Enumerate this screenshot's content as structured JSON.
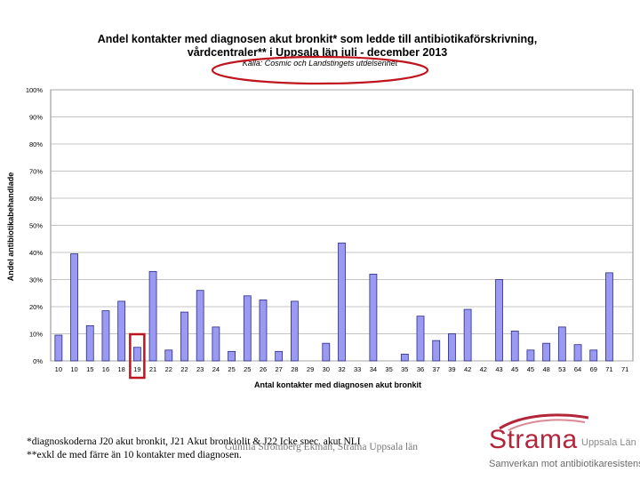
{
  "chart_data": {
    "type": "bar",
    "title_line1": "Andel kontakter med diagnosen akut bronkit* som ledde till antibiotikaförskrivning,",
    "title_line2": "vårdcentraler** i Uppsala län juli - december 2013",
    "source": "Källa: Cosmic och Landstingets utdelsenhet",
    "xlabel": "Antal kontakter med diagnosen akut bronkit",
    "ylabel": "Andel antibiotikabehandlade",
    "ylim": [
      0,
      100
    ],
    "yticks": [
      "0%",
      "10%",
      "20%",
      "30%",
      "40%",
      "50%",
      "60%",
      "70%",
      "80%",
      "90%",
      "100%"
    ],
    "grid": true,
    "categories": [
      "10",
      "10",
      "15",
      "16",
      "18",
      "19",
      "21",
      "22",
      "22",
      "23",
      "24",
      "25",
      "25",
      "26",
      "27",
      "28",
      "29",
      "30",
      "32",
      "33",
      "34",
      "35",
      "35",
      "36",
      "37",
      "39",
      "42",
      "42",
      "43",
      "45",
      "45",
      "48",
      "53",
      "64",
      "69",
      "71",
      "71"
    ],
    "values": [
      9.5,
      39.5,
      13,
      18.5,
      22,
      5,
      33,
      4,
      18,
      26,
      12.5,
      3.5,
      24,
      22.5,
      3.5,
      22,
      0,
      6.5,
      43.5,
      0,
      32,
      0,
      2.5,
      16.5,
      7.5,
      10,
      19,
      0,
      30,
      11,
      4,
      6.5,
      12.5,
      6,
      4,
      32.5,
      0
    ],
    "highlight_category_index": 5,
    "highlight_color": "#c0141c",
    "bar_color": "#9a9af2",
    "bar_edge_color": "#2a2a8a",
    "annotation_ellipse_color": "#c0141c"
  },
  "footnotes": {
    "line1": "*diagnoskoderna J20 akut bronkit, J21 Akut bronkiolit & J22 Icke spec. akut NLI",
    "line2": "**exkl de med färre än 10 kontakter med diagnosen.",
    "credit": "Gunilla Strömberg Ekman, Strama Uppsala län"
  },
  "logo": {
    "word": "Strama",
    "region": "Uppsala Län",
    "tagline": "Samverkan mot antibiotikaresistens",
    "color": "#b5253a"
  }
}
